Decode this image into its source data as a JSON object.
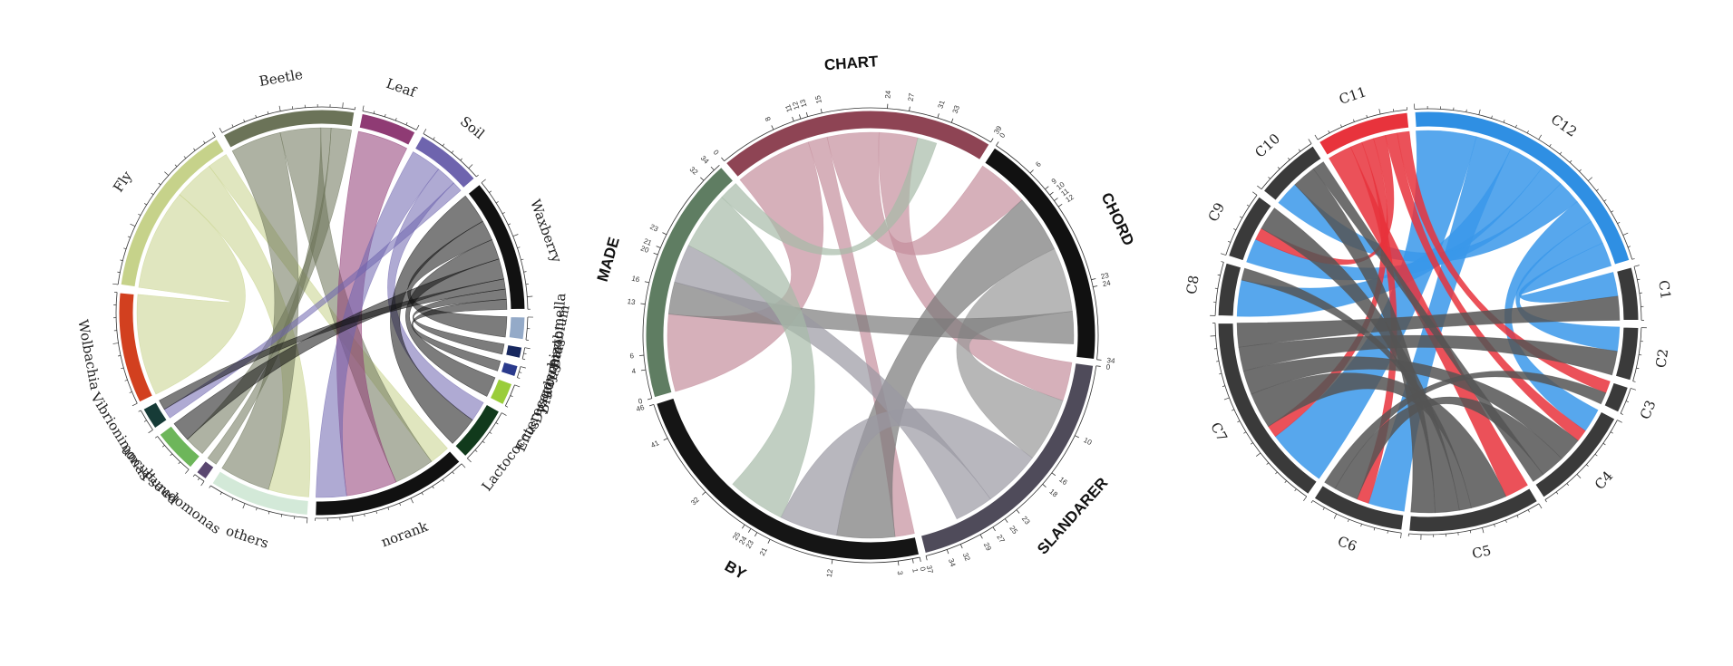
{
  "chart_data": [
    {
      "type": "chord",
      "sectors": [
        {
          "name": "Beetle",
          "color": "#6b7358"
        },
        {
          "name": "Leaf",
          "color": "#8f3b74"
        },
        {
          "name": "Soil",
          "color": "#6e64ae"
        },
        {
          "name": "Waxberry",
          "color": "#111111"
        },
        {
          "name": "Bartomella",
          "color": "#94aac8"
        },
        {
          "name": "Bradyrhizobium",
          "color": "#17285f"
        },
        {
          "name": "Dysgonomas",
          "color": "#2a3a8c"
        },
        {
          "name": "Enterococcus",
          "color": "#9acd3a"
        },
        {
          "name": "Lactococcus",
          "color": "#113a1c"
        },
        {
          "name": "norank",
          "color": "#111111"
        },
        {
          "name": "others",
          "color": "#d3e9d8"
        },
        {
          "name": "Pseudomonas",
          "color": "#5a4770"
        },
        {
          "name": "uncultured",
          "color": "#6db65a"
        },
        {
          "name": "Vibrionimonas",
          "color": "#163b37"
        },
        {
          "name": "Wolbachia",
          "color": "#d2401f"
        },
        {
          "name": "Fly",
          "color": "#c6d28a"
        }
      ],
      "links": [
        {
          "from": "Fly",
          "to": "Wolbachia",
          "value": 10
        },
        {
          "from": "Fly",
          "to": "others",
          "value": 4
        },
        {
          "from": "Fly",
          "to": "norank",
          "value": 2
        },
        {
          "from": "Beetle",
          "to": "others",
          "value": 5
        },
        {
          "from": "Beetle",
          "to": "norank",
          "value": 4
        },
        {
          "from": "Beetle",
          "to": "Pseudomonas",
          "value": 1
        },
        {
          "from": "Beetle",
          "to": "uncultured",
          "value": 2
        },
        {
          "from": "Leaf",
          "to": "norank",
          "value": 5
        },
        {
          "from": "Soil",
          "to": "norank",
          "value": 3
        },
        {
          "from": "Soil",
          "to": "Lactococcus",
          "value": 2
        },
        {
          "from": "Soil",
          "to": "Vibrionimonas",
          "value": 1
        },
        {
          "from": "Waxberry",
          "to": "Lactococcus",
          "value": 3
        },
        {
          "from": "Waxberry",
          "to": "Bartomella",
          "value": 2
        },
        {
          "from": "Waxberry",
          "to": "Enterococcus",
          "value": 2
        },
        {
          "from": "Waxberry",
          "to": "uncultured",
          "value": 2
        },
        {
          "from": "Waxberry",
          "to": "Vibrionimonas",
          "value": 1
        },
        {
          "from": "Waxberry",
          "to": "Bradyrhizobium",
          "value": 1
        },
        {
          "from": "Waxberry",
          "to": "Dysgonomas",
          "value": 1
        }
      ]
    },
    {
      "type": "chord",
      "sectors": [
        {
          "name": "CHART",
          "color": "#8e4454",
          "max": 39,
          "ticks": [
            0,
            8,
            11,
            12,
            13,
            15,
            24,
            27,
            31,
            33,
            39
          ]
        },
        {
          "name": "CHORD",
          "color": "#111111",
          "max": 34,
          "ticks": [
            0,
            6,
            9,
            10,
            11,
            12,
            23,
            24,
            34
          ]
        },
        {
          "name": "SLANDARER",
          "color": "#4f4b5a",
          "max": 37,
          "ticks": [
            0,
            10,
            16,
            18,
            23,
            25,
            27,
            29,
            32,
            34,
            37
          ]
        },
        {
          "name": "BY",
          "color": "#151515",
          "max": 46,
          "ticks": [
            0,
            1,
            3,
            12,
            21,
            23,
            24,
            25,
            32,
            41,
            46
          ]
        },
        {
          "name": "MADE",
          "color": "#5f7d62",
          "max": 34,
          "ticks": [
            0,
            4,
            6,
            13,
            16,
            20,
            21,
            23,
            32,
            34
          ]
        }
      ],
      "links": [
        {
          "from": "CHART",
          "to": "MADE",
          "value": 12,
          "color": "#c48f9c"
        },
        {
          "from": "CHART",
          "to": "BY",
          "value": 3,
          "color": "#c48f9c"
        },
        {
          "from": "CHART",
          "to": "CHORD",
          "value": 8,
          "color": "#c48f9c"
        },
        {
          "from": "CHART",
          "to": "SLANDARER",
          "value": 6,
          "color": "#c48f9c"
        },
        {
          "from": "CHORD",
          "to": "BY",
          "value": 9,
          "color": "#777777"
        },
        {
          "from": "CHORD",
          "to": "SLANDARER",
          "value": 10,
          "color": "#999999"
        },
        {
          "from": "CHORD",
          "to": "MADE",
          "value": 5,
          "color": "#7a7a7a"
        },
        {
          "from": "SLANDARER",
          "to": "BY",
          "value": 9,
          "color": "#9a98a2"
        },
        {
          "from": "SLANDARER",
          "to": "MADE",
          "value": 6,
          "color": "#9a98a2"
        },
        {
          "from": "BY",
          "to": "MADE",
          "value": 9,
          "color": "#a7bba8"
        },
        {
          "from": "MADE",
          "to": "CHART",
          "value": 3,
          "color": "#a7bba8"
        }
      ]
    },
    {
      "type": "chord",
      "sectors": [
        {
          "name": "C1",
          "color": "#3a3a3a"
        },
        {
          "name": "C2",
          "color": "#3a3a3a"
        },
        {
          "name": "C3",
          "color": "#3a3a3a"
        },
        {
          "name": "C4",
          "color": "#3a3a3a"
        },
        {
          "name": "C5",
          "color": "#3a3a3a"
        },
        {
          "name": "C6",
          "color": "#3a3a3a"
        },
        {
          "name": "C7",
          "color": "#3a3a3a"
        },
        {
          "name": "C8",
          "color": "#3a3a3a"
        },
        {
          "name": "C9",
          "color": "#3a3a3a"
        },
        {
          "name": "C10",
          "color": "#3a3a3a"
        },
        {
          "name": "C11",
          "color": "#e8333c"
        },
        {
          "name": "C12",
          "color": "#2f8fe3"
        }
      ],
      "links": [
        {
          "from": "C12",
          "to": "C7",
          "value": 5,
          "color": "#3a98ea"
        },
        {
          "from": "C12",
          "to": "C6",
          "value": 3,
          "color": "#3a98ea"
        },
        {
          "from": "C12",
          "to": "C8",
          "value": 3,
          "color": "#3a98ea"
        },
        {
          "from": "C12",
          "to": "C9",
          "value": 2,
          "color": "#3a98ea"
        },
        {
          "from": "C12",
          "to": "C10",
          "value": 2,
          "color": "#3a98ea"
        },
        {
          "from": "C12",
          "to": "C4",
          "value": 2,
          "color": "#3a98ea"
        },
        {
          "from": "C12",
          "to": "C2",
          "value": 2,
          "color": "#3a98ea"
        },
        {
          "from": "C12",
          "to": "C1",
          "value": 2,
          "color": "#3a98ea"
        },
        {
          "from": "C11",
          "to": "C5",
          "value": 2,
          "color": "#e8333c"
        },
        {
          "from": "C11",
          "to": "C6",
          "value": 1,
          "color": "#e8333c"
        },
        {
          "from": "C11",
          "to": "C7",
          "value": 1,
          "color": "#e8333c"
        },
        {
          "from": "C11",
          "to": "C9",
          "value": 1,
          "color": "#e8333c"
        },
        {
          "from": "C11",
          "to": "C4",
          "value": 1,
          "color": "#e8333c"
        },
        {
          "from": "C11",
          "to": "C3",
          "value": 1,
          "color": "#e8333c"
        },
        {
          "from": "C7",
          "to": "C5",
          "value": 3,
          "color": "#555555"
        },
        {
          "from": "C7",
          "to": "C4",
          "value": 2,
          "color": "#555555"
        },
        {
          "from": "C7",
          "to": "C2",
          "value": 2,
          "color": "#555555"
        },
        {
          "from": "C7",
          "to": "C1",
          "value": 2,
          "color": "#555555"
        },
        {
          "from": "C6",
          "to": "C4",
          "value": 2,
          "color": "#555555"
        },
        {
          "from": "C6",
          "to": "C3",
          "value": 1,
          "color": "#555555"
        },
        {
          "from": "C8",
          "to": "C5",
          "value": 1,
          "color": "#555555"
        },
        {
          "from": "C9",
          "to": "C5",
          "value": 2,
          "color": "#555555"
        },
        {
          "from": "C10",
          "to": "C5",
          "value": 2,
          "color": "#555555"
        },
        {
          "from": "C10",
          "to": "C4",
          "value": 1,
          "color": "#555555"
        }
      ]
    }
  ]
}
